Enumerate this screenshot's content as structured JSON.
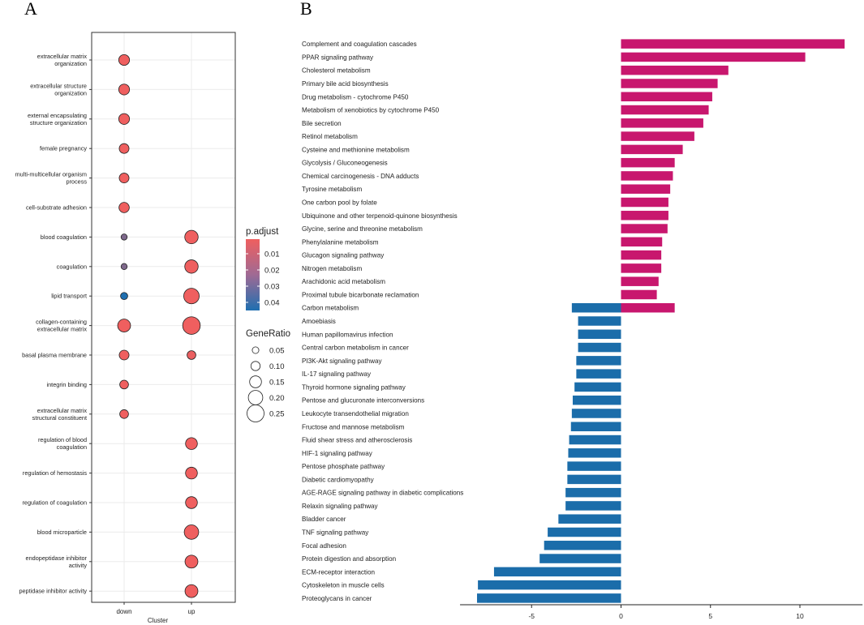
{
  "panels": {
    "a": "A",
    "b": "B"
  },
  "chart_data": [
    {
      "type": "scatter",
      "subtype": "dotplot",
      "xlabel": "Cluster",
      "x": [
        "down",
        "up"
      ],
      "terms": [
        [
          "extracellular matrix",
          "organization"
        ],
        [
          "extracellular structure",
          "organization"
        ],
        [
          "external encapsulating",
          "structure organization"
        ],
        [
          "female pregnancy"
        ],
        [
          "multi-multicellular organism",
          "process"
        ],
        [
          "cell-substrate adhesion"
        ],
        [
          "blood coagulation"
        ],
        [
          "coagulation"
        ],
        [
          "lipid transport"
        ],
        [
          "collagen-containing",
          "extracellular matrix"
        ],
        [
          "basal plasma membrane"
        ],
        [
          "integrin binding"
        ],
        [
          "extracellular matrix",
          "structural constituent"
        ],
        [
          "regulation of blood",
          "coagulation"
        ],
        [
          "regulation of hemostasis"
        ],
        [
          "regulation of coagulation"
        ],
        [
          "blood microparticle"
        ],
        [
          "endopeptidase inhibitor",
          "activity"
        ],
        [
          "peptidase inhibitor activity"
        ]
      ],
      "points": [
        {
          "term": 0,
          "cluster": "down",
          "gene_ratio": 0.13,
          "p_adjust": 0.001
        },
        {
          "term": 1,
          "cluster": "down",
          "gene_ratio": 0.13,
          "p_adjust": 0.001
        },
        {
          "term": 2,
          "cluster": "down",
          "gene_ratio": 0.13,
          "p_adjust": 0.001
        },
        {
          "term": 3,
          "cluster": "down",
          "gene_ratio": 0.11,
          "p_adjust": 0.001
        },
        {
          "term": 4,
          "cluster": "down",
          "gene_ratio": 0.11,
          "p_adjust": 0.001
        },
        {
          "term": 5,
          "cluster": "down",
          "gene_ratio": 0.12,
          "p_adjust": 0.001
        },
        {
          "term": 6,
          "cluster": "down",
          "gene_ratio": 0.04,
          "p_adjust": 0.025
        },
        {
          "term": 6,
          "cluster": "up",
          "gene_ratio": 0.18,
          "p_adjust": 0.001
        },
        {
          "term": 7,
          "cluster": "down",
          "gene_ratio": 0.04,
          "p_adjust": 0.025
        },
        {
          "term": 7,
          "cluster": "up",
          "gene_ratio": 0.18,
          "p_adjust": 0.001
        },
        {
          "term": 8,
          "cluster": "down",
          "gene_ratio": 0.06,
          "p_adjust": 0.045
        },
        {
          "term": 8,
          "cluster": "up",
          "gene_ratio": 0.22,
          "p_adjust": 0.001
        },
        {
          "term": 9,
          "cluster": "down",
          "gene_ratio": 0.17,
          "p_adjust": 0.001
        },
        {
          "term": 9,
          "cluster": "up",
          "gene_ratio": 0.26,
          "p_adjust": 0.001
        },
        {
          "term": 10,
          "cluster": "down",
          "gene_ratio": 0.11,
          "p_adjust": 0.001
        },
        {
          "term": 10,
          "cluster": "up",
          "gene_ratio": 0.09,
          "p_adjust": 0.002
        },
        {
          "term": 11,
          "cluster": "down",
          "gene_ratio": 0.09,
          "p_adjust": 0.001
        },
        {
          "term": 12,
          "cluster": "down",
          "gene_ratio": 0.09,
          "p_adjust": 0.001
        },
        {
          "term": 13,
          "cluster": "up",
          "gene_ratio": 0.15,
          "p_adjust": 0.001
        },
        {
          "term": 14,
          "cluster": "up",
          "gene_ratio": 0.15,
          "p_adjust": 0.001
        },
        {
          "term": 15,
          "cluster": "up",
          "gene_ratio": 0.15,
          "p_adjust": 0.001
        },
        {
          "term": 16,
          "cluster": "up",
          "gene_ratio": 0.2,
          "p_adjust": 0.001
        },
        {
          "term": 17,
          "cluster": "up",
          "gene_ratio": 0.17,
          "p_adjust": 0.001
        },
        {
          "term": 18,
          "cluster": "up",
          "gene_ratio": 0.17,
          "p_adjust": 0.001
        }
      ],
      "color_legend": {
        "title": "p.adjust",
        "ticks": [
          "0.01",
          "0.02",
          "0.03",
          "0.04"
        ],
        "tick_values": [
          0.01,
          0.02,
          0.03,
          0.04
        ],
        "range": [
          0.001,
          0.045
        ],
        "low_color": "#EF5F5F",
        "high_color": "#1F6FB0"
      },
      "size_legend": {
        "title": "GeneRatio",
        "labels": [
          "0.05",
          "0.10",
          "0.15",
          "0.20",
          "0.25"
        ],
        "values": [
          0.05,
          0.1,
          0.15,
          0.2,
          0.25
        ]
      }
    },
    {
      "type": "bar",
      "orientation": "horizontal",
      "categories": [
        "Complement and coagulation cascades",
        "PPAR signaling pathway",
        "Cholesterol metabolism",
        "Primary bile acid biosynthesis",
        "Drug metabolism - cytochrome P450",
        "Metabolism of xenobiotics by cytochrome P450",
        "Bile secretion",
        "Retinol metabolism",
        "Cysteine and methionine metabolism",
        "Glycolysis / Gluconeogenesis",
        "Chemical carcinogenesis - DNA adducts",
        "Tyrosine metabolism",
        "One carbon pool by folate",
        "Ubiquinone and other terpenoid-quinone biosynthesis",
        "Glycine, serine and threonine metabolism",
        "Phenylalanine metabolism",
        "Glucagon signaling pathway",
        "Nitrogen metabolism",
        "Arachidonic acid metabolism",
        "Proximal tubule bicarbonate reclamation",
        "Carbon metabolism",
        "Amoebiasis",
        "Human papillomavirus infection",
        "Central carbon metabolism in cancer",
        "PI3K-Akt signaling pathway",
        "IL-17 signaling pathway",
        "Thyroid hormone signaling pathway",
        "Pentose and glucuronate interconversions",
        "Leukocyte transendothelial migration",
        "Fructose and mannose metabolism",
        "Fluid shear stress and atherosclerosis",
        "HIF-1 signaling pathway",
        "Pentose phosphate pathway",
        "Diabetic cardiomyopathy",
        "AGE-RAGE signaling pathway in diabetic complications",
        "Relaxin signaling pathway",
        "Bladder cancer",
        "TNF signaling pathway",
        "Focal adhesion",
        "Protein digestion and absorption",
        "ECM-receptor interaction",
        "Cytoskeleton in muscle cells",
        "Proteoglycans in cancer"
      ],
      "values": [
        12.5,
        10.3,
        6.0,
        5.4,
        5.1,
        4.9,
        4.6,
        4.1,
        3.45,
        3.0,
        2.9,
        2.75,
        2.65,
        2.65,
        2.6,
        2.3,
        2.25,
        2.25,
        2.1,
        2.0,
        3.0,
        -2.4,
        -2.4,
        -2.4,
        -2.5,
        -2.5,
        -2.6,
        -2.7,
        -2.75,
        -2.8,
        -2.9,
        -2.95,
        -3.0,
        -3.0,
        -3.1,
        -3.1,
        -3.5,
        -4.1,
        -4.3,
        -4.55,
        -7.1,
        -8.0,
        -8.05
      ],
      "extra_negative": {
        "category_index": 20,
        "value": -2.75
      },
      "positive_color": "#C8176E",
      "negative_color": "#1B6DAA",
      "xlim": [
        -9,
        13.5
      ],
      "xticks": [
        -5,
        0,
        5,
        10
      ],
      "xtick_labels": [
        "-5",
        "0",
        "5",
        "10"
      ]
    }
  ]
}
